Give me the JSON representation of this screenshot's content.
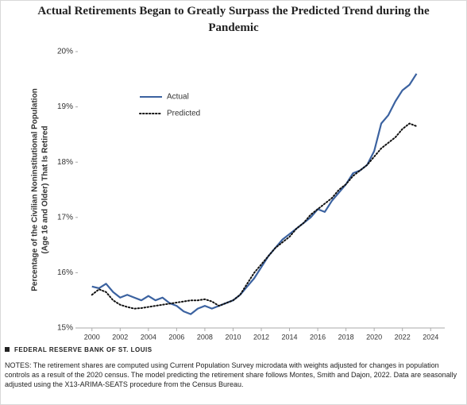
{
  "chart_data": {
    "type": "line",
    "title": "Actual Retirements Began to Greatly Surpass the Predicted Trend during the Pandemic",
    "ylabel": [
      "Percentage of the Civilian Noninstitutional Population",
      "(Age 16 and Older) That Is Retired"
    ],
    "source": "FEDERAL RESERVE BANK OF ST. LOUIS",
    "notes": "NOTES: The retirement shares are computed using Current Population Survey microdata with weights adjusted for changes in population controls as a result of the 2020 census. The model predicting the retirement share follows Montes, Smith and Dajon, 2022. Data are seasonally adjusted using the X13-ARIMA-SEATS procedure from the Census Bureau.",
    "x": [
      2000,
      2000.5,
      2001,
      2001.5,
      2002,
      2002.5,
      2003,
      2003.5,
      2004,
      2004.5,
      2005,
      2005.5,
      2006,
      2006.5,
      2007,
      2007.5,
      2008,
      2008.5,
      2009,
      2009.5,
      2010,
      2010.5,
      2011,
      2011.5,
      2012,
      2012.5,
      2013,
      2013.5,
      2014,
      2014.5,
      2015,
      2015.5,
      2016,
      2016.5,
      2017,
      2017.5,
      2018,
      2018.5,
      2019,
      2019.5,
      2020,
      2020.5,
      2021,
      2021.5,
      2022,
      2022.5,
      2023
    ],
    "series": [
      {
        "name": "Actual",
        "color": "#3b62a0",
        "dash": "solid",
        "values": [
          15.75,
          15.72,
          15.8,
          15.65,
          15.55,
          15.6,
          15.55,
          15.5,
          15.58,
          15.5,
          15.55,
          15.45,
          15.4,
          15.3,
          15.25,
          15.35,
          15.4,
          15.35,
          15.4,
          15.45,
          15.5,
          15.6,
          15.75,
          15.9,
          16.1,
          16.3,
          16.45,
          16.6,
          16.7,
          16.8,
          16.9,
          17.0,
          17.15,
          17.1,
          17.3,
          17.45,
          17.6,
          17.8,
          17.85,
          17.95,
          18.2,
          18.7,
          18.85,
          19.1,
          19.3,
          19.4,
          19.6
        ]
      },
      {
        "name": "Predicted",
        "color": "#111111",
        "dash": "dotted",
        "values": [
          15.6,
          15.7,
          15.65,
          15.5,
          15.42,
          15.38,
          15.35,
          15.36,
          15.38,
          15.4,
          15.42,
          15.44,
          15.46,
          15.48,
          15.5,
          15.5,
          15.52,
          15.48,
          15.4,
          15.45,
          15.5,
          15.6,
          15.8,
          16.0,
          16.15,
          16.3,
          16.45,
          16.55,
          16.65,
          16.8,
          16.9,
          17.05,
          17.15,
          17.25,
          17.35,
          17.5,
          17.6,
          17.75,
          17.85,
          17.95,
          18.1,
          18.25,
          18.35,
          18.45,
          18.6,
          18.7,
          18.65
        ]
      }
    ],
    "xlim": [
      1999,
      2025
    ],
    "xticks": [
      2000,
      2002,
      2004,
      2006,
      2008,
      2010,
      2012,
      2014,
      2016,
      2018,
      2020,
      2022,
      2024
    ],
    "ylim": [
      15,
      20
    ],
    "yticks": [
      {
        "value": 15,
        "label": "15%"
      },
      {
        "value": 16,
        "label": "16%"
      },
      {
        "value": 17,
        "label": "17%"
      },
      {
        "value": 18,
        "label": "18%"
      },
      {
        "value": 19,
        "label": "19%"
      },
      {
        "value": 20,
        "label": "20%"
      }
    ],
    "legend": "upper left",
    "grid": false
  }
}
